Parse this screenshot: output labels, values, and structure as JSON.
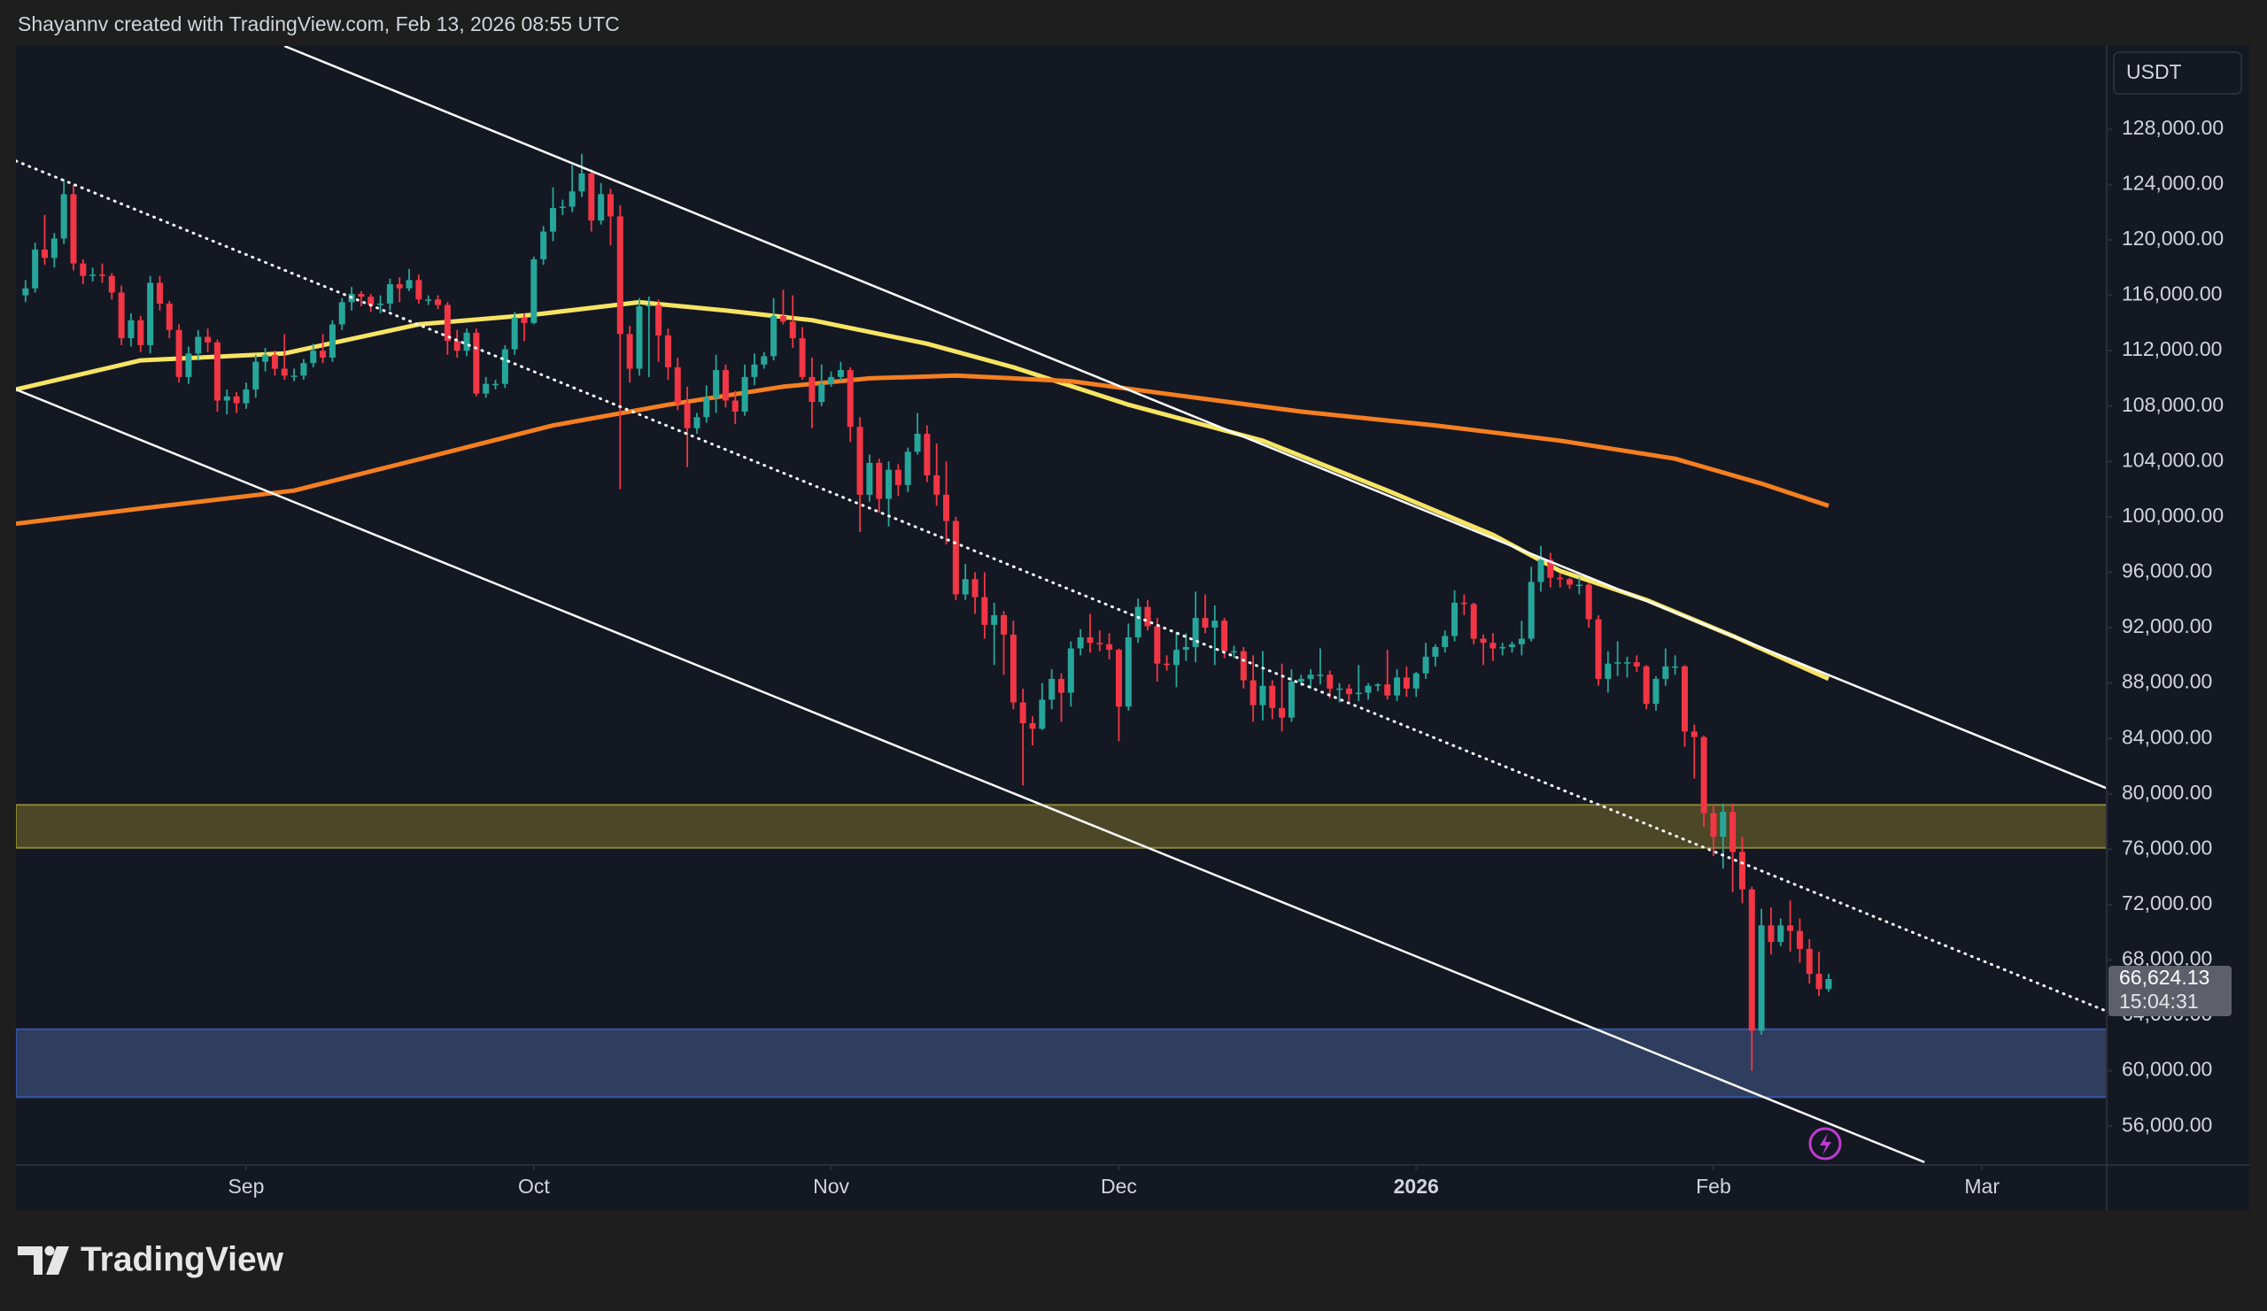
{
  "header": {
    "text": "Shayannv created with TradingView.com, Feb 13, 2026 08:55 UTC"
  },
  "chart_data": {
    "type": "candlestick",
    "currency": "USDT",
    "xlim": [
      -1,
      217
    ],
    "xticks": [
      {
        "value": 23,
        "label": "Sep"
      },
      {
        "value": 53,
        "label": "Oct"
      },
      {
        "value": 84,
        "label": "Nov"
      },
      {
        "value": 114,
        "label": "Dec"
      },
      {
        "value": 145,
        "label": "2026"
      },
      {
        "value": 176,
        "label": "Feb"
      },
      {
        "value": 204,
        "label": "Mar"
      }
    ],
    "ylim": [
      53200,
      134000
    ],
    "yticks": [
      {
        "value": 56000,
        "label": "56,000.00"
      },
      {
        "value": 60000,
        "label": "60,000.00"
      },
      {
        "value": 64000,
        "label": "64,000.00"
      },
      {
        "value": 68000,
        "label": "68,000.00"
      },
      {
        "value": 72000,
        "label": "72,000.00"
      },
      {
        "value": 76000,
        "label": "76,000.00"
      },
      {
        "value": 80000,
        "label": "80,000.00"
      },
      {
        "value": 84000,
        "label": "84,000.00"
      },
      {
        "value": 88000,
        "label": "88,000.00"
      },
      {
        "value": 92000,
        "label": "92,000.00"
      },
      {
        "value": 96000,
        "label": "96,000.00"
      },
      {
        "value": 100000,
        "label": "100,000.00"
      },
      {
        "value": 104000,
        "label": "104,000.00"
      },
      {
        "value": 108000,
        "label": "108,000.00"
      },
      {
        "value": 112000,
        "label": "112,000.00"
      },
      {
        "value": 116000,
        "label": "116,000.00"
      },
      {
        "value": 120000,
        "label": "120,000.00"
      },
      {
        "value": 124000,
        "label": "124,000.00"
      },
      {
        "value": 128000,
        "label": "128,000.00"
      }
    ],
    "grid": false,
    "up_color": "#26a69a",
    "down_color": "#f23645",
    "ohlc": [
      [
        116000,
        117100,
        115500,
        116500
      ],
      [
        116500,
        119800,
        116200,
        119300
      ],
      [
        119300,
        121800,
        118200,
        118700
      ],
      [
        118700,
        120500,
        118000,
        120100
      ],
      [
        120100,
        124400,
        119700,
        123300
      ],
      [
        123300,
        124000,
        117800,
        118300
      ],
      [
        118300,
        118600,
        116800,
        117400
      ],
      [
        117400,
        118000,
        117000,
        117500
      ],
      [
        117500,
        118300,
        116900,
        117400
      ],
      [
        117400,
        117600,
        115700,
        116200
      ],
      [
        116200,
        116700,
        112400,
        112900
      ],
      [
        112900,
        114700,
        112300,
        114200
      ],
      [
        114200,
        114500,
        111900,
        112400
      ],
      [
        112400,
        117400,
        111800,
        116900
      ],
      [
        116900,
        117400,
        114900,
        115400
      ],
      [
        115400,
        115600,
        112900,
        113500
      ],
      [
        113500,
        113900,
        109700,
        110100
      ],
      [
        110100,
        112300,
        109600,
        111800
      ],
      [
        111800,
        113500,
        111300,
        113000
      ],
      [
        113000,
        113600,
        111900,
        112600
      ],
      [
        112600,
        112800,
        107600,
        108400
      ],
      [
        108400,
        109200,
        107400,
        108700
      ],
      [
        108700,
        109000,
        107500,
        108200
      ],
      [
        108200,
        109700,
        107800,
        109200
      ],
      [
        109200,
        111700,
        108600,
        111200
      ],
      [
        111200,
        112200,
        110500,
        111700
      ],
      [
        111700,
        112000,
        110200,
        110700
      ],
      [
        110700,
        113200,
        109900,
        110200
      ],
      [
        110200,
        110700,
        109800,
        110200
      ],
      [
        110200,
        111400,
        109900,
        111100
      ],
      [
        111100,
        112500,
        110800,
        112000
      ],
      [
        112000,
        113200,
        111100,
        111500
      ],
      [
        111500,
        114200,
        111200,
        113900
      ],
      [
        113900,
        115800,
        113500,
        115500
      ],
      [
        115500,
        116600,
        114900,
        116100
      ],
      [
        116100,
        116300,
        115200,
        115900
      ],
      [
        115900,
        116100,
        114800,
        115300
      ],
      [
        115300,
        116000,
        114700,
        115400
      ],
      [
        115400,
        117200,
        114900,
        116800
      ],
      [
        116800,
        117300,
        115500,
        116500
      ],
      [
        116500,
        117900,
        116300,
        117100
      ],
      [
        117100,
        117500,
        115400,
        115700
      ],
      [
        115700,
        116000,
        115300,
        115700
      ],
      [
        115700,
        116000,
        115000,
        115300
      ],
      [
        115300,
        115500,
        111700,
        112700
      ],
      [
        112700,
        113500,
        111500,
        112000
      ],
      [
        112000,
        113600,
        111600,
        113300
      ],
      [
        113300,
        113600,
        108700,
        108900
      ],
      [
        108900,
        110100,
        108600,
        109600
      ],
      [
        109600,
        109900,
        109200,
        109600
      ],
      [
        109600,
        112400,
        109300,
        112100
      ],
      [
        112100,
        114800,
        111700,
        114400
      ],
      [
        114400,
        114700,
        112700,
        114000
      ],
      [
        114000,
        118800,
        113900,
        118600
      ],
      [
        118600,
        121000,
        118200,
        120600
      ],
      [
        120600,
        123800,
        119900,
        122300
      ],
      [
        122300,
        122900,
        121800,
        122400
      ],
      [
        122400,
        125400,
        122000,
        123500
      ],
      [
        123500,
        126200,
        123100,
        124800
      ],
      [
        124800,
        125100,
        120600,
        121400
      ],
      [
        121400,
        124100,
        121100,
        123300
      ],
      [
        123300,
        123700,
        119600,
        121700
      ],
      [
        121700,
        122500,
        102000,
        113200
      ],
      [
        113200,
        113800,
        109700,
        110700
      ],
      [
        110700,
        115800,
        110200,
        115200
      ],
      [
        115200,
        115900,
        110100,
        115300
      ],
      [
        115300,
        115700,
        111200,
        113100
      ],
      [
        113100,
        113600,
        109900,
        110800
      ],
      [
        110800,
        111500,
        107700,
        108200
      ],
      [
        108200,
        109400,
        103600,
        106400
      ],
      [
        106400,
        107500,
        106000,
        107200
      ],
      [
        107200,
        109500,
        106800,
        108600
      ],
      [
        108600,
        111700,
        107500,
        110600
      ],
      [
        110600,
        111000,
        107900,
        108400
      ],
      [
        108400,
        109100,
        106700,
        107600
      ],
      [
        107600,
        111000,
        107300,
        110100
      ],
      [
        110100,
        111800,
        109500,
        111000
      ],
      [
        111000,
        111900,
        110700,
        111600
      ],
      [
        111600,
        115800,
        111300,
        114500
      ],
      [
        114500,
        116400,
        113900,
        114100
      ],
      [
        114100,
        116000,
        112200,
        112900
      ],
      [
        112900,
        113700,
        109900,
        110100
      ],
      [
        110100,
        111500,
        106400,
        108300
      ],
      [
        108300,
        111000,
        108000,
        109600
      ],
      [
        109600,
        110500,
        109400,
        110100
      ],
      [
        110100,
        111200,
        109800,
        110600
      ],
      [
        110600,
        110800,
        105400,
        106500
      ],
      [
        106500,
        107200,
        98900,
        101600
      ],
      [
        101600,
        104500,
        101100,
        103900
      ],
      [
        103900,
        104200,
        100300,
        101300
      ],
      [
        101300,
        104000,
        99300,
        103400
      ],
      [
        103400,
        103800,
        101500,
        102300
      ],
      [
        102300,
        105000,
        101800,
        104700
      ],
      [
        104700,
        107500,
        104500,
        106000
      ],
      [
        106000,
        106600,
        102500,
        103000
      ],
      [
        103000,
        105300,
        100800,
        101600
      ],
      [
        101600,
        104000,
        98000,
        99700
      ],
      [
        99700,
        100000,
        94000,
        94400
      ],
      [
        94400,
        96600,
        94000,
        95500
      ],
      [
        95500,
        96000,
        93000,
        94200
      ],
      [
        94200,
        96000,
        91200,
        92200
      ],
      [
        92200,
        93800,
        89300,
        92900
      ],
      [
        92900,
        93200,
        88600,
        91500
      ],
      [
        91500,
        92500,
        86100,
        86600
      ],
      [
        86600,
        87600,
        80600,
        85100
      ],
      [
        85100,
        85600,
        83500,
        84700
      ],
      [
        84700,
        88000,
        84600,
        86800
      ],
      [
        86800,
        89000,
        86100,
        88300
      ],
      [
        88300,
        88700,
        85200,
        87300
      ],
      [
        87300,
        91000,
        86300,
        90500
      ],
      [
        90500,
        91900,
        90000,
        91300
      ],
      [
        91300,
        93000,
        90200,
        90900
      ],
      [
        90900,
        91800,
        90300,
        90800
      ],
      [
        90800,
        91600,
        89700,
        90400
      ],
      [
        90400,
        90500,
        83800,
        86300
      ],
      [
        86300,
        92300,
        86000,
        91300
      ],
      [
        91300,
        94100,
        90900,
        93500
      ],
      [
        93500,
        94000,
        91800,
        92100
      ],
      [
        92100,
        92700,
        88100,
        89400
      ],
      [
        89400,
        90000,
        88900,
        89300
      ],
      [
        89300,
        91700,
        87700,
        90400
      ],
      [
        90400,
        91600,
        89600,
        90600
      ],
      [
        90600,
        94600,
        89500,
        92700
      ],
      [
        92700,
        94400,
        91600,
        92000
      ],
      [
        92000,
        93600,
        89300,
        92500
      ],
      [
        92500,
        92700,
        89800,
        90300
      ],
      [
        90300,
        90700,
        89800,
        90300
      ],
      [
        90300,
        90600,
        87600,
        88200
      ],
      [
        88200,
        90000,
        85200,
        86400
      ],
      [
        86400,
        90300,
        85300,
        87800
      ],
      [
        87800,
        88200,
        85400,
        86200
      ],
      [
        86200,
        89400,
        84500,
        85500
      ],
      [
        85500,
        89000,
        85200,
        88100
      ],
      [
        88100,
        88600,
        87800,
        88300
      ],
      [
        88300,
        89000,
        87600,
        88600
      ],
      [
        88600,
        90500,
        87900,
        88600
      ],
      [
        88600,
        88900,
        86900,
        87600
      ],
      [
        87600,
        88000,
        86600,
        87600
      ],
      [
        87600,
        87900,
        86700,
        87200
      ],
      [
        87200,
        89300,
        86700,
        87300
      ],
      [
        87300,
        88000,
        86800,
        87800
      ],
      [
        87800,
        88000,
        87400,
        87900
      ],
      [
        87900,
        90400,
        86800,
        87100
      ],
      [
        87100,
        89000,
        86700,
        88400
      ],
      [
        88400,
        89200,
        87000,
        87600
      ],
      [
        87600,
        88800,
        87000,
        88700
      ],
      [
        88700,
        90900,
        88300,
        89900
      ],
      [
        89900,
        90800,
        89200,
        90600
      ],
      [
        90600,
        91800,
        90200,
        91400
      ],
      [
        91400,
        94700,
        91000,
        93800
      ],
      [
        93800,
        94400,
        92900,
        93700
      ],
      [
        93700,
        93800,
        90800,
        91200
      ],
      [
        91200,
        91500,
        89300,
        90900
      ],
      [
        90900,
        91600,
        89600,
        90500
      ],
      [
        90500,
        90900,
        90000,
        90600
      ],
      [
        90600,
        91000,
        90200,
        90800
      ],
      [
        90800,
        92500,
        90000,
        91200
      ],
      [
        91200,
        96400,
        91000,
        95300
      ],
      [
        95300,
        97900,
        94600,
        96900
      ],
      [
        96900,
        97400,
        94900,
        95600
      ],
      [
        95600,
        95900,
        94900,
        95500
      ],
      [
        95500,
        95600,
        94800,
        95100
      ],
      [
        95100,
        95600,
        94400,
        95100
      ],
      [
        95100,
        95200,
        92000,
        92600
      ],
      [
        92600,
        92900,
        87800,
        88300
      ],
      [
        88300,
        90300,
        87300,
        89400
      ],
      [
        89400,
        91000,
        88500,
        89500
      ],
      [
        89500,
        89900,
        88400,
        89500
      ],
      [
        89500,
        90000,
        88800,
        89200
      ],
      [
        89200,
        89300,
        86100,
        86500
      ],
      [
        86500,
        88500,
        86000,
        88300
      ],
      [
        88300,
        90500,
        87800,
        89200
      ],
      [
        89200,
        90000,
        88600,
        89200
      ],
      [
        89200,
        89300,
        83400,
        84500
      ],
      [
        84500,
        85000,
        81100,
        84100
      ],
      [
        84100,
        84200,
        77600,
        78600
      ],
      [
        78600,
        79200,
        75500,
        76900
      ],
      [
        76900,
        79300,
        74600,
        78700
      ],
      [
        78700,
        79300,
        72900,
        75800
      ],
      [
        75800,
        76900,
        72100,
        73100
      ],
      [
        73100,
        73300,
        60000,
        62900
      ],
      [
        62900,
        71700,
        62600,
        70500
      ],
      [
        70500,
        71800,
        68400,
        69300
      ],
      [
        69300,
        71000,
        69000,
        70500
      ],
      [
        70500,
        72300,
        68600,
        70100
      ],
      [
        70100,
        71000,
        67800,
        68800
      ],
      [
        68800,
        69500,
        66300,
        67000
      ],
      [
        67000,
        68600,
        65400,
        65900
      ],
      [
        65900,
        67000,
        65700,
        66624.13
      ]
    ],
    "last_label": "66,624.13",
    "countdown": "15:04:31",
    "lines": [
      {
        "color": "#f7e463",
        "x": [
          -1,
          12,
          27,
          41,
          53,
          64,
          73,
          82,
          94,
          103,
          115,
          129,
          142,
          153,
          160,
          169,
          178,
          188
        ],
        "values": [
          109200,
          111300,
          111800,
          113900,
          114600,
          115500,
          114900,
          114200,
          112500,
          110800,
          108100,
          105500,
          101900,
          98700,
          96100,
          94000,
          91400,
          88300
        ]
      },
      {
        "color": "#f57f20",
        "x": [
          -1,
          12,
          28,
          43,
          55,
          67,
          79,
          88,
          97,
          109,
          121,
          133,
          147,
          160,
          172,
          181,
          188
        ],
        "values": [
          99500,
          100600,
          101900,
          104500,
          106600,
          108100,
          109400,
          110000,
          110200,
          109800,
          108700,
          107600,
          106600,
          105500,
          104200,
          102400,
          100800
        ]
      }
    ],
    "trendlines": [
      {
        "color": "#ffffff",
        "dashed": false,
        "x": [
          27,
          217
        ],
        "values": [
          134000,
          80400
        ]
      },
      {
        "color": "#ffffff",
        "dashed": false,
        "x": [
          -1,
          198
        ],
        "values": [
          109200,
          53400
        ]
      },
      {
        "color": "#ffffff",
        "dashed": true,
        "x": [
          -1,
          217
        ],
        "values": [
          125700,
          64300
        ]
      }
    ],
    "zones": [
      {
        "color": "#4b4727",
        "border": "#8c8534",
        "range": [
          76100,
          79200
        ]
      },
      {
        "color": "#2f3e5e",
        "border": "#3557a8",
        "range": [
          58100,
          63000
        ]
      }
    ]
  },
  "footer": {
    "brand": "TradingView"
  }
}
